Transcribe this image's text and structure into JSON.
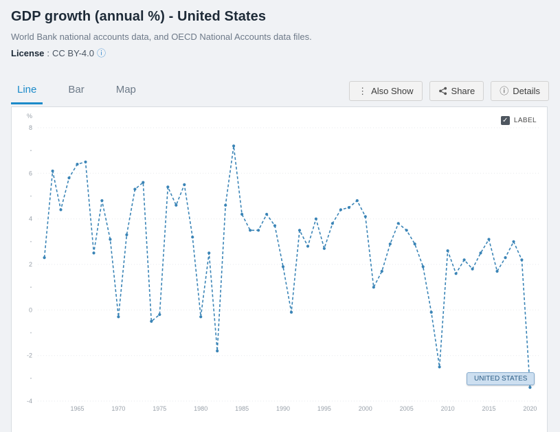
{
  "header": {
    "title": "GDP growth (annual %) - United States",
    "source": "World Bank national accounts data, and OECD National Accounts data files.",
    "license_label": "License",
    "license_separator": ":",
    "license_value": "CC BY-4.0"
  },
  "tabs": [
    {
      "label": "Line",
      "active": true
    },
    {
      "label": "Bar",
      "active": false
    },
    {
      "label": "Map",
      "active": false
    }
  ],
  "actions": [
    {
      "label": "Also Show",
      "icon": "kebab"
    },
    {
      "label": "Share",
      "icon": "share"
    },
    {
      "label": "Details",
      "icon": "info"
    }
  ],
  "icons": {
    "kebab": "⋮",
    "info": "ⓘ",
    "check": "✓"
  },
  "chart": {
    "label_toggle": "LABEL",
    "country_label": "UNITED STATES"
  },
  "colors": {
    "accent_blue": "#1b8ac9",
    "line_blue": "#3a84b6",
    "page_bg": "#f0f2f5",
    "chip_bg": "#cddff0"
  },
  "chart_data": {
    "type": "line",
    "title": "GDP growth (annual %) - United States",
    "xlabel": "",
    "ylabel": "%",
    "ylim": [
      -4,
      8
    ],
    "grid": true,
    "line_style": "dashed-with-dots",
    "line_color": "#3a84b6",
    "series_name": "UNITED STATES",
    "x_ticks": [
      1965,
      1970,
      1975,
      1980,
      1985,
      1990,
      1995,
      2000,
      2005,
      2010,
      2015,
      2020
    ],
    "y_ticks": [
      8,
      6,
      4,
      2,
      0,
      -2,
      -4
    ],
    "x": [
      1961,
      1962,
      1963,
      1964,
      1965,
      1966,
      1967,
      1968,
      1969,
      1970,
      1971,
      1972,
      1973,
      1974,
      1975,
      1976,
      1977,
      1978,
      1979,
      1980,
      1981,
      1982,
      1983,
      1984,
      1985,
      1986,
      1987,
      1988,
      1989,
      1990,
      1991,
      1992,
      1993,
      1994,
      1995,
      1996,
      1997,
      1998,
      1999,
      2000,
      2001,
      2002,
      2003,
      2004,
      2005,
      2006,
      2007,
      2008,
      2009,
      2010,
      2011,
      2012,
      2013,
      2014,
      2015,
      2016,
      2017,
      2018,
      2019,
      2020
    ],
    "values": [
      2.3,
      6.1,
      4.4,
      5.8,
      6.4,
      6.5,
      2.5,
      4.8,
      3.1,
      -0.3,
      3.3,
      5.3,
      5.6,
      -0.5,
      -0.2,
      5.4,
      4.6,
      5.5,
      3.2,
      -0.3,
      2.5,
      -1.8,
      4.6,
      7.2,
      4.2,
      3.5,
      3.5,
      4.2,
      3.7,
      1.9,
      -0.1,
      3.5,
      2.8,
      4.0,
      2.7,
      3.8,
      4.4,
      4.5,
      4.8,
      4.1,
      1.0,
      1.7,
      2.9,
      3.8,
      3.5,
      2.9,
      1.9,
      -0.1,
      -2.5,
      2.6,
      1.6,
      2.2,
      1.8,
      2.5,
      3.1,
      1.7,
      2.3,
      3.0,
      2.2,
      -3.4
    ]
  }
}
